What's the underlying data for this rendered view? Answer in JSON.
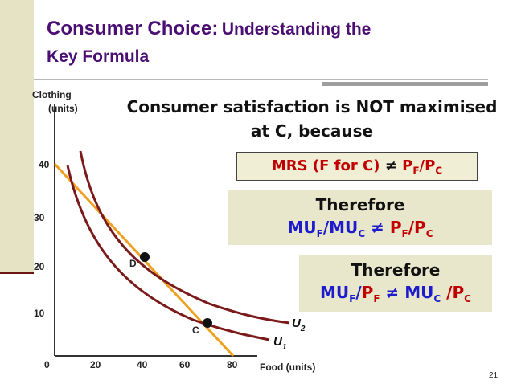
{
  "title": {
    "main": "Consumer Choice:",
    "sub1": "Understanding the",
    "sub2": "Key Formula"
  },
  "axes": {
    "y_label_line1": "Clothing",
    "y_label_line2": "(units)",
    "x_label": "Food (units)",
    "origin": "0",
    "y_ticks": [
      "40",
      "30",
      "20",
      "10"
    ],
    "x_ticks": [
      "20",
      "40",
      "60",
      "80"
    ]
  },
  "points": {
    "D": "D",
    "C": "C"
  },
  "curves": {
    "U1": "U",
    "U1_sub": "1",
    "U2": "U",
    "U2_sub": "2"
  },
  "statement": {
    "line1": "Consumer satisfaction is NOT maximised",
    "line2": "at C, because"
  },
  "box_mrs": {
    "prefix": "MRS (F for C)",
    "neq": "≠",
    "P": "P",
    "F": "F",
    "slash": "/",
    "C": "C"
  },
  "box_therefore1": {
    "heading": "Therefore",
    "MU": "MU",
    "F": "F",
    "slash": "/",
    "C": "C",
    "neq": "≠",
    "P": "P"
  },
  "box_therefore2": {
    "heading": "Therefore",
    "MU": "MU",
    "F": "F",
    "slash": "/",
    "C": "C",
    "neq": "≠",
    "P": "P",
    "slash_space": " /"
  },
  "colors": {
    "title": "#4b0f73",
    "curve": "#7b1a1a",
    "budget_line": "#f0a020",
    "formula_blue": "#1c1ccc",
    "formula_red": "#c00000",
    "box_bg": "#e8e6cb"
  },
  "page_number": "21"
}
